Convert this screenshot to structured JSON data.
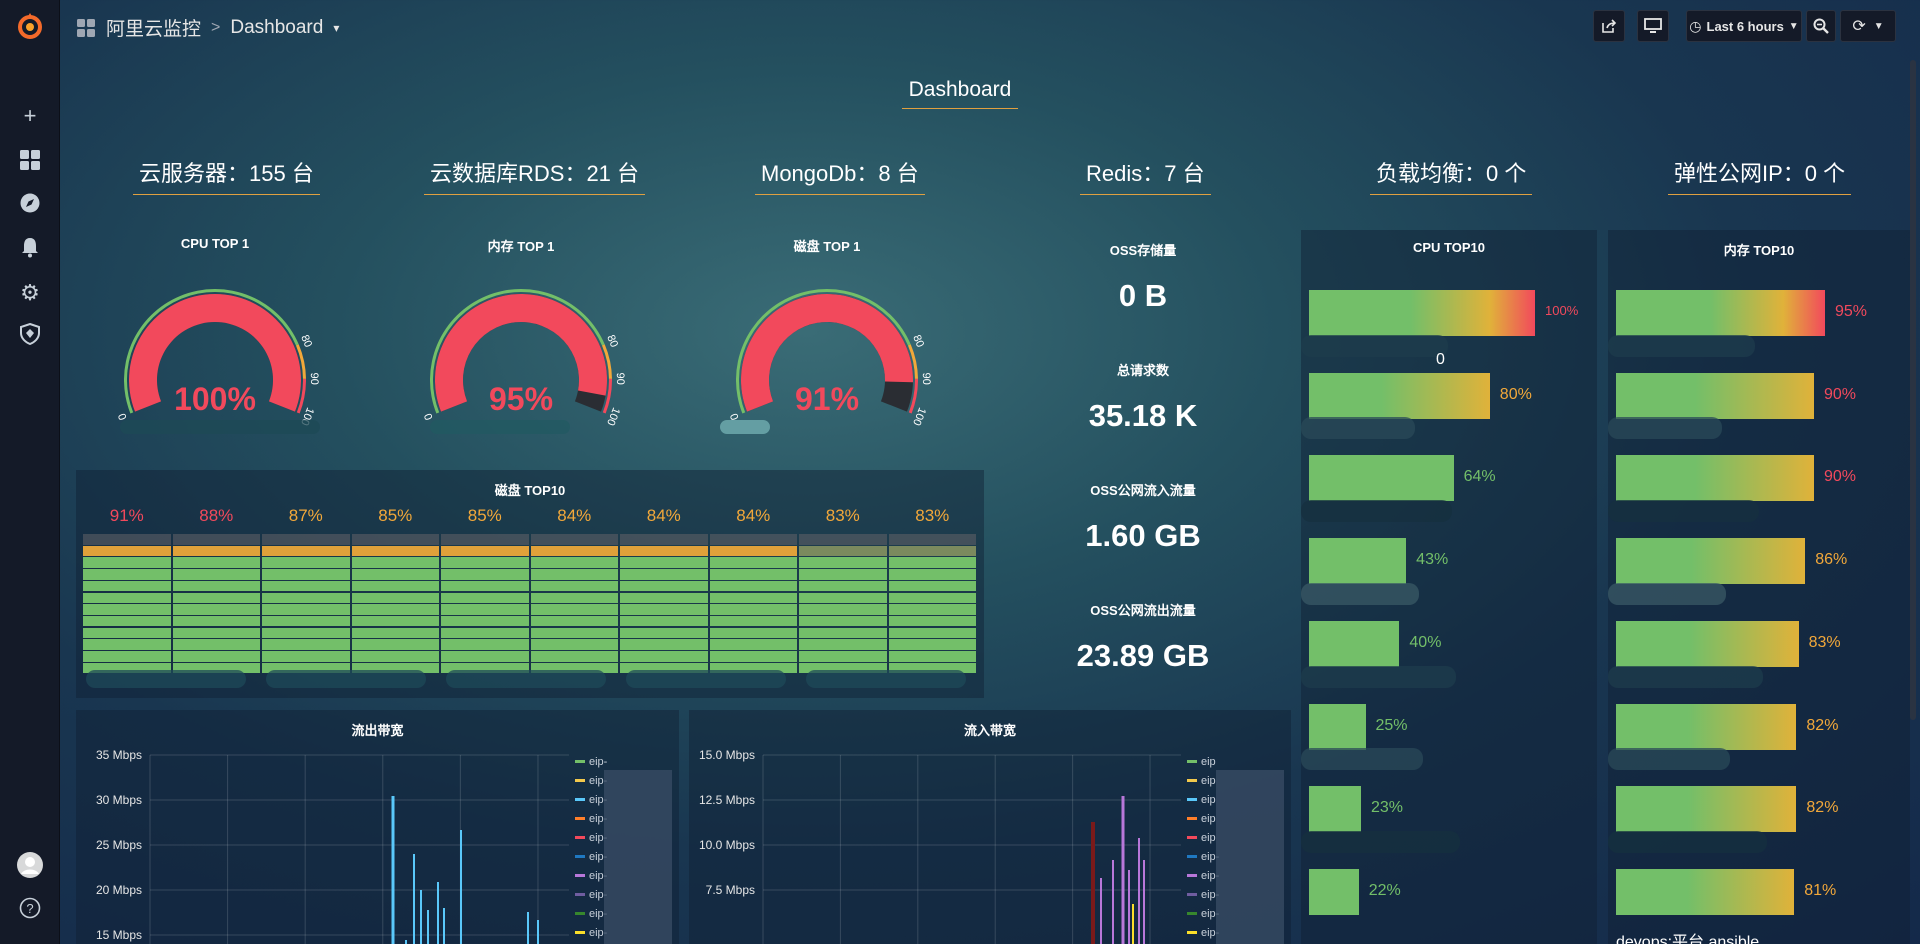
{
  "header": {
    "org": "阿里云监控",
    "sep": ">",
    "dashboard": "Dashboard",
    "dropdown": "▾"
  },
  "toolbar": {
    "time_range": "Last 6 hours"
  },
  "page": {
    "title": "Dashboard"
  },
  "stats": [
    {
      "label": "云服务器：155 台"
    },
    {
      "label": "云数据库RDS：21 台"
    },
    {
      "label": "MongoDb：8 台"
    },
    {
      "label": "Redis：7 台"
    },
    {
      "label": "负载均衡：0 个"
    },
    {
      "label": "弹性公网IP：0 个"
    }
  ],
  "gauges": [
    {
      "title": "CPU TOP 1",
      "value": "100%",
      "pct": 100
    },
    {
      "title": "内存 TOP 1",
      "value": "95%",
      "pct": 95
    },
    {
      "title": "磁盘 TOP 1",
      "value": "91%",
      "pct": 91
    }
  ],
  "gauge_ticks": {
    "t0": "0",
    "t80": "80",
    "t90": "90",
    "t100": "100"
  },
  "disk_top10": {
    "title": "磁盘 TOP10",
    "values": [
      "91%",
      "88%",
      "87%",
      "85%",
      "85%",
      "84%",
      "84%",
      "84%",
      "83%",
      "83%"
    ],
    "pcts": [
      91,
      88,
      87,
      85,
      85,
      84,
      84,
      84,
      83,
      83
    ]
  },
  "oss": [
    {
      "title": "OSS存储量",
      "value": "0 B",
      "color": "#299c3c"
    },
    {
      "title": "总请求数",
      "value": "35.18 K",
      "color": "#4ea343"
    },
    {
      "title": "OSS公网流入流量",
      "value": "1.60 GB",
      "color": "#2f6bd1"
    },
    {
      "title": "OSS公网流出流量",
      "value": "23.89 GB",
      "color": "#1f5dc4"
    }
  ],
  "cpu_top10": {
    "title": "CPU TOP10",
    "values": [
      "100%",
      "80%",
      "64%",
      "43%",
      "40%",
      "25%",
      "23%",
      "22%"
    ],
    "pcts": [
      100,
      80,
      64,
      43,
      40,
      25,
      23,
      22
    ],
    "fragment": "0"
  },
  "mem_top10": {
    "title": "内存 TOP10",
    "values": [
      "95%",
      "90%",
      "90%",
      "86%",
      "83%",
      "82%",
      "82%",
      "81%"
    ],
    "pcts": [
      95,
      90,
      90,
      86,
      83,
      82,
      82,
      81
    ],
    "last_label": "devops:平台.ansible"
  },
  "out_bw": {
    "title": "流出带宽",
    "yticks": [
      "35 Mbps",
      "30 Mbps",
      "25 Mbps",
      "20 Mbps",
      "15 Mbps"
    ],
    "legend": [
      "eip-",
      "eip-",
      "eip-",
      "eip-",
      "eip-",
      "eip-",
      "eip-",
      "eip-",
      "eip-",
      "eip-"
    ]
  },
  "in_bw": {
    "title": "流入带宽",
    "yticks": [
      "15.0 Mbps",
      "12.5 Mbps",
      "10.0 Mbps",
      "7.5 Mbps"
    ],
    "legend": [
      "eip",
      "eip",
      "eip",
      "eip",
      "eip",
      "eip-",
      "eip-",
      "eip-",
      "eip-",
      "eip-"
    ]
  },
  "colors": {
    "red": "#f2495c",
    "orange": "#f2a83a",
    "green": "#73bf69",
    "series": [
      "#73bf69",
      "#f2c94c",
      "#5ac8fa",
      "#ff7f2a",
      "#f2495c",
      "#1f78c1",
      "#b877d9",
      "#705da0",
      "#37872d",
      "#fade2a"
    ]
  }
}
